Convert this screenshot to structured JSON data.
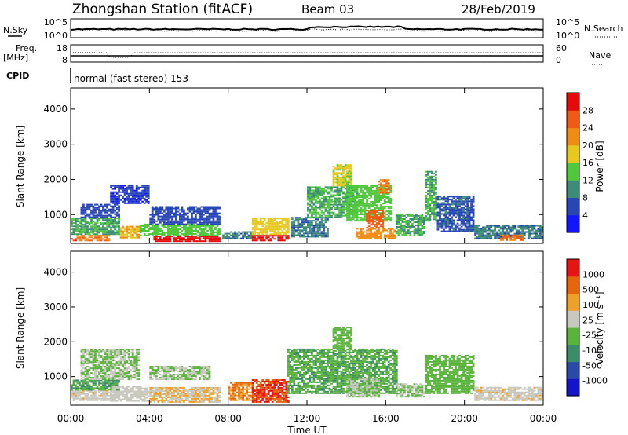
{
  "header": {
    "station": "Zhongshan Station (fitACF)",
    "beam": "Beam 03",
    "date": "28/Feb/2019"
  },
  "mini_panels": {
    "nsky_label": "N.Sky",
    "nsky_ticks": [
      "10^5",
      "10^0"
    ],
    "nsearch_label": "N.Search",
    "nsearch_ticks": [
      "10^5",
      "10^0"
    ],
    "freq_label_1": "Freq.",
    "freq_label_2": "[MHz]",
    "freq_ticks": [
      "18",
      "8"
    ],
    "nave_label": "Nave",
    "nave_ticks": [
      "60",
      "0"
    ],
    "cpid_label": "CPID",
    "cpid_text": "normal (fast stereo) 153"
  },
  "x_axis": {
    "title": "Time UT",
    "ticks": [
      "00:00",
      "04:00",
      "08:00",
      "12:00",
      "16:00",
      "20:00",
      "00:00"
    ]
  },
  "colors": {
    "power_scale": [
      "#1414ff",
      "#2846b4",
      "#3c8c78",
      "#50c83c",
      "#e6c81e",
      "#f08c14",
      "#f05a14",
      "#e60a0a"
    ],
    "velocity_scale": [
      "#1414c8",
      "#2a4aa8",
      "#3c8c6a",
      "#5ab43c",
      "#c8c8be",
      "#f0a028",
      "#e6640a",
      "#e61414"
    ]
  },
  "chart_data": [
    {
      "type": "heatmap",
      "name": "power",
      "ylabel": "Slant Range [km]",
      "ylim": [
        180,
        4600
      ],
      "y_ticks": [
        "4000",
        "3000",
        "2000",
        "1000"
      ],
      "xlim_hours": [
        0,
        24
      ],
      "colorbar": {
        "label": "Power [dB]",
        "ticks": [
          "28",
          "24",
          "20",
          "16",
          "12",
          "8",
          "4"
        ],
        "range": [
          0,
          32
        ]
      },
      "regions": [
        {
          "t0": 0.0,
          "t1": 0.3,
          "r0": 240,
          "r1": 320,
          "v": 28
        },
        {
          "t0": 0.3,
          "t1": 2.0,
          "r0": 240,
          "r1": 420,
          "v": 24
        },
        {
          "t0": 0.0,
          "t1": 2.5,
          "r0": 420,
          "r1": 900,
          "v": 12
        },
        {
          "t0": 0.5,
          "t1": 2.5,
          "r0": 900,
          "r1": 1300,
          "v": 6
        },
        {
          "t0": 2.0,
          "t1": 4.0,
          "r0": 1300,
          "r1": 1800,
          "v": 5
        },
        {
          "t0": 2.5,
          "t1": 3.5,
          "r0": 320,
          "r1": 640,
          "v": 20
        },
        {
          "t0": 4.2,
          "t1": 7.5,
          "r0": 220,
          "r1": 380,
          "v": 30
        },
        {
          "t0": 3.5,
          "t1": 7.5,
          "r0": 380,
          "r1": 700,
          "v": 14
        },
        {
          "t0": 4.0,
          "t1": 7.5,
          "r0": 700,
          "r1": 1200,
          "v": 6
        },
        {
          "t0": 7.7,
          "t1": 9.2,
          "r0": 300,
          "r1": 520,
          "v": 9
        },
        {
          "t0": 9.2,
          "t1": 11.0,
          "r0": 240,
          "r1": 420,
          "v": 30
        },
        {
          "t0": 9.2,
          "t1": 11.0,
          "r0": 420,
          "r1": 900,
          "v": 18
        },
        {
          "t0": 11.2,
          "t1": 13.0,
          "r0": 350,
          "r1": 900,
          "v": 9
        },
        {
          "t0": 12.0,
          "t1": 14.5,
          "r0": 900,
          "r1": 1800,
          "v": 12
        },
        {
          "t0": 13.3,
          "t1": 14.2,
          "r0": 1800,
          "r1": 2400,
          "v": 17
        },
        {
          "t0": 14.0,
          "t1": 16.2,
          "r0": 800,
          "r1": 1800,
          "v": 14
        },
        {
          "t0": 15.6,
          "t1": 16.2,
          "r0": 1600,
          "r1": 2000,
          "v": 24
        },
        {
          "t0": 15.0,
          "t1": 15.8,
          "r0": 600,
          "r1": 1100,
          "v": 26
        },
        {
          "t0": 14.5,
          "t1": 16.5,
          "r0": 300,
          "r1": 600,
          "v": 22
        },
        {
          "t0": 16.5,
          "t1": 18.0,
          "r0": 400,
          "r1": 1000,
          "v": 12
        },
        {
          "t0": 18.0,
          "t1": 18.6,
          "r0": 800,
          "r1": 2200,
          "v": 12
        },
        {
          "t0": 18.6,
          "t1": 20.5,
          "r0": 500,
          "r1": 1500,
          "v": 7
        },
        {
          "t0": 20.5,
          "t1": 24.0,
          "r0": 300,
          "r1": 700,
          "v": 9
        },
        {
          "t0": 21.8,
          "t1": 23.0,
          "r0": 250,
          "r1": 400,
          "v": 24
        }
      ]
    },
    {
      "type": "heatmap",
      "name": "velocity",
      "ylabel": "Slant Range [km]",
      "ylim": [
        180,
        4600
      ],
      "y_ticks": [
        "4000",
        "3000",
        "2000",
        "1000"
      ],
      "xlim_hours": [
        0,
        24
      ],
      "colorbar": {
        "label": "Velocity [m s⁻¹]",
        "ticks": [
          "1000",
          "500",
          "100",
          "25",
          "-25",
          "-100",
          "-500",
          "-1000"
        ],
        "range": [
          -1200,
          1200
        ]
      },
      "regions": [
        {
          "t0": 0.0,
          "t1": 2.5,
          "r0": 300,
          "r1": 600,
          "v": 180
        },
        {
          "t0": 0.0,
          "t1": 2.5,
          "r0": 600,
          "r1": 900,
          "v": -300
        },
        {
          "t0": 0.5,
          "t1": 3.5,
          "r0": 900,
          "r1": 1800,
          "v": 0
        },
        {
          "t0": 2.0,
          "t1": 4.0,
          "r0": 280,
          "r1": 700,
          "v": 150
        },
        {
          "t0": 4.0,
          "t1": 7.5,
          "r0": 250,
          "r1": 700,
          "v": 300
        },
        {
          "t0": 4.0,
          "t1": 7.0,
          "r0": 900,
          "r1": 1300,
          "v": 0
        },
        {
          "t0": 8.0,
          "t1": 9.2,
          "r0": 300,
          "r1": 800,
          "v": 600
        },
        {
          "t0": 9.2,
          "t1": 11.0,
          "r0": 250,
          "r1": 900,
          "v": 900
        },
        {
          "t0": 11.0,
          "t1": 16.5,
          "r0": 500,
          "r1": 1800,
          "v": -250
        },
        {
          "t0": 13.3,
          "t1": 14.2,
          "r0": 1800,
          "r1": 2400,
          "v": -150
        },
        {
          "t0": 14.0,
          "t1": 15.6,
          "r0": 400,
          "r1": 900,
          "v": 0
        },
        {
          "t0": 16.5,
          "t1": 18.0,
          "r0": 400,
          "r1": 800,
          "v": 0
        },
        {
          "t0": 18.0,
          "t1": 20.5,
          "r0": 500,
          "r1": 1600,
          "v": -150
        },
        {
          "t0": 20.5,
          "t1": 24.0,
          "r0": 300,
          "r1": 700,
          "v": 200
        }
      ]
    }
  ]
}
